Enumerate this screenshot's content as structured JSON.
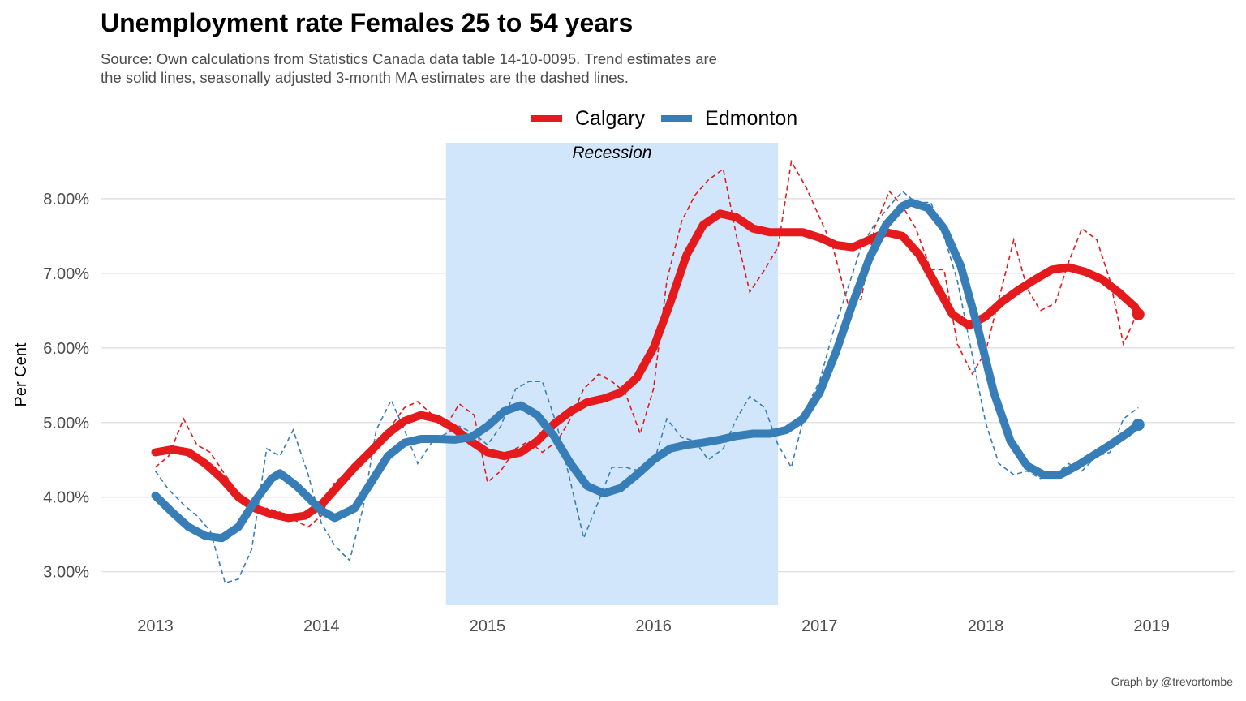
{
  "title": "Unemployment rate Females 25 to 54 years",
  "subtitle_line1": "Source: Own calculations from Statistics Canada data table 14-10-0095. Trend estimates are",
  "subtitle_line2": "the solid lines, seasonally adjusted 3-month MA estimates are the dashed lines.",
  "caption": "Graph by @trevortombe",
  "colors": {
    "calgary": "#e41a1c",
    "edmonton": "#377eb8",
    "recession": "#d1e6fb",
    "grid": "#e3e3e3"
  },
  "chart_data": {
    "type": "line",
    "ylabel": "Per Cent",
    "ylim": [
      2.55,
      8.75
    ],
    "yticks": [
      3,
      4,
      5,
      6,
      7,
      8
    ],
    "ytick_labels": [
      "3.00%",
      "4.00%",
      "5.00%",
      "6.00%",
      "7.00%",
      "8.00%"
    ],
    "xlim": [
      2012.67,
      2019.5
    ],
    "xticks": [
      2013,
      2014,
      2015,
      2016,
      2017,
      2018,
      2019
    ],
    "xtick_labels": [
      "2013",
      "2014",
      "2015",
      "2016",
      "2017",
      "2018",
      "2019"
    ],
    "grid": true,
    "legend_position": "top",
    "annotation": {
      "label": "Recession",
      "x_start": 2014.75,
      "x_end": 2016.75
    },
    "series": [
      {
        "name": "Calgary",
        "color": "#e41a1c",
        "trend": [
          [
            2013.0,
            4.6
          ],
          [
            2013.1,
            4.64
          ],
          [
            2013.2,
            4.6
          ],
          [
            2013.3,
            4.45
          ],
          [
            2013.4,
            4.25
          ],
          [
            2013.5,
            4.0
          ],
          [
            2013.6,
            3.85
          ],
          [
            2013.7,
            3.77
          ],
          [
            2013.8,
            3.72
          ],
          [
            2013.9,
            3.75
          ],
          [
            2014.0,
            3.9
          ],
          [
            2014.1,
            4.15
          ],
          [
            2014.2,
            4.4
          ],
          [
            2014.3,
            4.62
          ],
          [
            2014.4,
            4.85
          ],
          [
            2014.5,
            5.02
          ],
          [
            2014.6,
            5.1
          ],
          [
            2014.7,
            5.05
          ],
          [
            2014.8,
            4.92
          ],
          [
            2014.9,
            4.75
          ],
          [
            2015.0,
            4.6
          ],
          [
            2015.1,
            4.55
          ],
          [
            2015.2,
            4.6
          ],
          [
            2015.3,
            4.75
          ],
          [
            2015.4,
            4.98
          ],
          [
            2015.5,
            5.15
          ],
          [
            2015.6,
            5.27
          ],
          [
            2015.7,
            5.32
          ],
          [
            2015.8,
            5.4
          ],
          [
            2015.9,
            5.6
          ],
          [
            2016.0,
            6.0
          ],
          [
            2016.1,
            6.6
          ],
          [
            2016.2,
            7.25
          ],
          [
            2016.3,
            7.65
          ],
          [
            2016.4,
            7.8
          ],
          [
            2016.5,
            7.75
          ],
          [
            2016.6,
            7.6
          ],
          [
            2016.7,
            7.55
          ],
          [
            2016.8,
            7.55
          ],
          [
            2016.9,
            7.55
          ],
          [
            2017.0,
            7.48
          ],
          [
            2017.1,
            7.38
          ],
          [
            2017.2,
            7.35
          ],
          [
            2017.3,
            7.45
          ],
          [
            2017.4,
            7.55
          ],
          [
            2017.5,
            7.5
          ],
          [
            2017.6,
            7.25
          ],
          [
            2017.7,
            6.85
          ],
          [
            2017.8,
            6.45
          ],
          [
            2017.9,
            6.3
          ],
          [
            2018.0,
            6.42
          ],
          [
            2018.1,
            6.62
          ],
          [
            2018.2,
            6.78
          ],
          [
            2018.3,
            6.92
          ],
          [
            2018.4,
            7.05
          ],
          [
            2018.5,
            7.08
          ],
          [
            2018.6,
            7.02
          ],
          [
            2018.7,
            6.92
          ],
          [
            2018.8,
            6.75
          ],
          [
            2018.9,
            6.55
          ],
          [
            2018.92,
            6.45
          ]
        ],
        "ma": [
          [
            2013.0,
            4.4
          ],
          [
            2013.08,
            4.55
          ],
          [
            2013.17,
            5.05
          ],
          [
            2013.25,
            4.7
          ],
          [
            2013.33,
            4.6
          ],
          [
            2013.42,
            4.3
          ],
          [
            2013.5,
            4.05
          ],
          [
            2013.58,
            3.8
          ],
          [
            2013.67,
            3.85
          ],
          [
            2013.75,
            3.8
          ],
          [
            2013.83,
            3.7
          ],
          [
            2013.92,
            3.6
          ],
          [
            2014.0,
            3.75
          ],
          [
            2014.08,
            4.2
          ],
          [
            2014.17,
            4.35
          ],
          [
            2014.25,
            4.5
          ],
          [
            2014.33,
            4.7
          ],
          [
            2014.42,
            4.95
          ],
          [
            2014.5,
            5.2
          ],
          [
            2014.58,
            5.28
          ],
          [
            2014.67,
            5.1
          ],
          [
            2014.75,
            4.95
          ],
          [
            2014.83,
            5.25
          ],
          [
            2014.92,
            5.1
          ],
          [
            2015.0,
            4.2
          ],
          [
            2015.08,
            4.35
          ],
          [
            2015.17,
            4.65
          ],
          [
            2015.25,
            4.75
          ],
          [
            2015.33,
            4.6
          ],
          [
            2015.42,
            4.75
          ],
          [
            2015.5,
            5.05
          ],
          [
            2015.58,
            5.45
          ],
          [
            2015.67,
            5.65
          ],
          [
            2015.75,
            5.55
          ],
          [
            2015.83,
            5.4
          ],
          [
            2015.92,
            4.85
          ],
          [
            2016.0,
            5.45
          ],
          [
            2016.08,
            6.9
          ],
          [
            2016.17,
            7.7
          ],
          [
            2016.25,
            8.05
          ],
          [
            2016.33,
            8.25
          ],
          [
            2016.42,
            8.4
          ],
          [
            2016.5,
            7.5
          ],
          [
            2016.58,
            6.75
          ],
          [
            2016.67,
            7.05
          ],
          [
            2016.75,
            7.35
          ],
          [
            2016.83,
            8.5
          ],
          [
            2016.92,
            8.15
          ],
          [
            2017.0,
            7.75
          ],
          [
            2017.08,
            7.35
          ],
          [
            2017.17,
            6.6
          ],
          [
            2017.25,
            6.65
          ],
          [
            2017.33,
            7.6
          ],
          [
            2017.42,
            8.1
          ],
          [
            2017.5,
            7.9
          ],
          [
            2017.58,
            7.6
          ],
          [
            2017.67,
            7.05
          ],
          [
            2017.75,
            7.05
          ],
          [
            2017.83,
            6.05
          ],
          [
            2017.92,
            5.65
          ],
          [
            2018.0,
            5.95
          ],
          [
            2018.08,
            6.65
          ],
          [
            2018.17,
            7.45
          ],
          [
            2018.25,
            6.8
          ],
          [
            2018.33,
            6.5
          ],
          [
            2018.42,
            6.6
          ],
          [
            2018.5,
            7.15
          ],
          [
            2018.58,
            7.6
          ],
          [
            2018.67,
            7.45
          ],
          [
            2018.75,
            6.9
          ],
          [
            2018.83,
            6.05
          ],
          [
            2018.92,
            6.5
          ]
        ]
      },
      {
        "name": "Edmonton",
        "color": "#377eb8",
        "trend": [
          [
            2013.0,
            4.02
          ],
          [
            2013.1,
            3.8
          ],
          [
            2013.2,
            3.6
          ],
          [
            2013.3,
            3.48
          ],
          [
            2013.4,
            3.45
          ],
          [
            2013.5,
            3.6
          ],
          [
            2013.6,
            3.95
          ],
          [
            2013.7,
            4.25
          ],
          [
            2013.75,
            4.32
          ],
          [
            2013.85,
            4.15
          ],
          [
            2014.0,
            3.82
          ],
          [
            2014.08,
            3.72
          ],
          [
            2014.2,
            3.85
          ],
          [
            2014.3,
            4.2
          ],
          [
            2014.4,
            4.55
          ],
          [
            2014.5,
            4.73
          ],
          [
            2014.6,
            4.78
          ],
          [
            2014.7,
            4.78
          ],
          [
            2014.8,
            4.77
          ],
          [
            2014.9,
            4.8
          ],
          [
            2015.0,
            4.95
          ],
          [
            2015.1,
            5.15
          ],
          [
            2015.2,
            5.23
          ],
          [
            2015.3,
            5.1
          ],
          [
            2015.4,
            4.82
          ],
          [
            2015.5,
            4.45
          ],
          [
            2015.6,
            4.15
          ],
          [
            2015.7,
            4.05
          ],
          [
            2015.8,
            4.12
          ],
          [
            2015.9,
            4.3
          ],
          [
            2016.0,
            4.5
          ],
          [
            2016.1,
            4.65
          ],
          [
            2016.2,
            4.7
          ],
          [
            2016.3,
            4.73
          ],
          [
            2016.4,
            4.77
          ],
          [
            2016.5,
            4.82
          ],
          [
            2016.6,
            4.85
          ],
          [
            2016.7,
            4.85
          ],
          [
            2016.8,
            4.9
          ],
          [
            2016.9,
            5.05
          ],
          [
            2017.0,
            5.4
          ],
          [
            2017.1,
            5.95
          ],
          [
            2017.2,
            6.6
          ],
          [
            2017.3,
            7.2
          ],
          [
            2017.4,
            7.65
          ],
          [
            2017.5,
            7.9
          ],
          [
            2017.55,
            7.95
          ],
          [
            2017.65,
            7.88
          ],
          [
            2017.75,
            7.6
          ],
          [
            2017.85,
            7.1
          ],
          [
            2017.95,
            6.3
          ],
          [
            2018.05,
            5.4
          ],
          [
            2018.15,
            4.75
          ],
          [
            2018.25,
            4.42
          ],
          [
            2018.35,
            4.3
          ],
          [
            2018.45,
            4.3
          ],
          [
            2018.55,
            4.42
          ],
          [
            2018.65,
            4.56
          ],
          [
            2018.75,
            4.7
          ],
          [
            2018.85,
            4.85
          ],
          [
            2018.92,
            4.97
          ]
        ],
        "ma": [
          [
            2013.0,
            4.35
          ],
          [
            2013.08,
            4.1
          ],
          [
            2013.17,
            3.9
          ],
          [
            2013.25,
            3.75
          ],
          [
            2013.33,
            3.55
          ],
          [
            2013.42,
            2.85
          ],
          [
            2013.5,
            2.9
          ],
          [
            2013.58,
            3.3
          ],
          [
            2013.67,
            4.65
          ],
          [
            2013.75,
            4.55
          ],
          [
            2013.83,
            4.9
          ],
          [
            2013.92,
            4.3
          ],
          [
            2014.0,
            3.65
          ],
          [
            2014.08,
            3.35
          ],
          [
            2014.17,
            3.15
          ],
          [
            2014.25,
            3.85
          ],
          [
            2014.33,
            4.9
          ],
          [
            2014.42,
            5.3
          ],
          [
            2014.5,
            4.9
          ],
          [
            2014.58,
            4.45
          ],
          [
            2014.67,
            4.75
          ],
          [
            2014.75,
            4.85
          ],
          [
            2014.83,
            4.95
          ],
          [
            2014.92,
            4.85
          ],
          [
            2015.0,
            4.7
          ],
          [
            2015.08,
            4.95
          ],
          [
            2015.17,
            5.45
          ],
          [
            2015.25,
            5.55
          ],
          [
            2015.33,
            5.55
          ],
          [
            2015.42,
            4.95
          ],
          [
            2015.5,
            4.2
          ],
          [
            2015.58,
            3.45
          ],
          [
            2015.67,
            3.95
          ],
          [
            2015.75,
            4.4
          ],
          [
            2015.83,
            4.4
          ],
          [
            2015.92,
            4.35
          ],
          [
            2016.0,
            4.45
          ],
          [
            2016.08,
            5.05
          ],
          [
            2016.17,
            4.8
          ],
          [
            2016.25,
            4.75
          ],
          [
            2016.33,
            4.5
          ],
          [
            2016.42,
            4.65
          ],
          [
            2016.5,
            5.05
          ],
          [
            2016.58,
            5.35
          ],
          [
            2016.67,
            5.2
          ],
          [
            2016.75,
            4.7
          ],
          [
            2016.83,
            4.4
          ],
          [
            2016.92,
            5.2
          ],
          [
            2017.0,
            5.55
          ],
          [
            2017.08,
            6.2
          ],
          [
            2017.17,
            6.8
          ],
          [
            2017.25,
            7.35
          ],
          [
            2017.33,
            7.65
          ],
          [
            2017.42,
            7.9
          ],
          [
            2017.5,
            8.1
          ],
          [
            2017.58,
            7.95
          ],
          [
            2017.67,
            7.95
          ],
          [
            2017.75,
            7.5
          ],
          [
            2017.83,
            6.9
          ],
          [
            2017.92,
            5.9
          ],
          [
            2018.0,
            5.0
          ],
          [
            2018.08,
            4.45
          ],
          [
            2018.17,
            4.3
          ],
          [
            2018.25,
            4.35
          ],
          [
            2018.33,
            4.25
          ],
          [
            2018.42,
            4.3
          ],
          [
            2018.5,
            4.45
          ],
          [
            2018.58,
            4.35
          ],
          [
            2018.67,
            4.55
          ],
          [
            2018.75,
            4.6
          ],
          [
            2018.83,
            5.05
          ],
          [
            2018.92,
            5.2
          ]
        ]
      }
    ]
  }
}
